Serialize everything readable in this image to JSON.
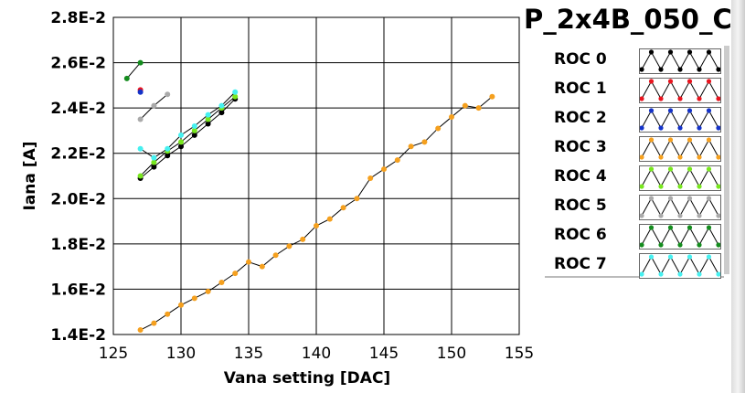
{
  "title": "P_2x4B_050_C",
  "chart_data": {
    "type": "line",
    "xlabel": "Vana setting [DAC]",
    "ylabel": "Iana [A]",
    "xlim": [
      125,
      155
    ],
    "ylim": [
      0.014,
      0.028
    ],
    "xticks": [
      125,
      130,
      135,
      140,
      145,
      150,
      155
    ],
    "xtick_labels": [
      "125",
      "130",
      "135",
      "140",
      "145",
      "150",
      "155"
    ],
    "yticks": [
      0.014,
      0.016,
      0.018,
      0.02,
      0.022,
      0.024,
      0.026,
      0.028
    ],
    "ytick_labels": [
      "1.4E-2",
      "1.6E-2",
      "1.8E-2",
      "2.0E-2",
      "2.2E-2",
      "2.4E-2",
      "2.6E-2",
      "2.8E-2"
    ],
    "grid": true,
    "legend_placement": "right",
    "series": [
      {
        "name": "ROC 0",
        "color": "#000000",
        "x": [
          127,
          128,
          129,
          130,
          131,
          132,
          133,
          134
        ],
        "y": [
          0.0209,
          0.0214,
          0.0219,
          0.0223,
          0.0228,
          0.0233,
          0.0238,
          0.0244
        ]
      },
      {
        "name": "ROC 1",
        "color": "#e8141e",
        "x": [
          127
        ],
        "y": [
          0.0248
        ]
      },
      {
        "name": "ROC 2",
        "color": "#1432c8",
        "x": [
          127
        ],
        "y": [
          0.0247
        ]
      },
      {
        "name": "ROC 3",
        "color": "#f5a01e",
        "x": [
          127,
          128,
          129,
          130,
          131,
          132,
          133,
          134,
          135,
          136,
          137,
          138,
          139,
          140,
          141,
          142,
          143,
          144,
          145,
          146,
          147,
          148,
          149,
          150,
          151,
          152,
          153
        ],
        "y": [
          0.0142,
          0.0145,
          0.0149,
          0.0153,
          0.0156,
          0.0159,
          0.0163,
          0.0167,
          0.0172,
          0.017,
          0.0175,
          0.0179,
          0.0182,
          0.0188,
          0.0191,
          0.0196,
          0.02,
          0.0209,
          0.0213,
          0.0217,
          0.0223,
          0.0225,
          0.0231,
          0.0236,
          0.0241,
          0.024,
          0.0245
        ]
      },
      {
        "name": "ROC 4",
        "color": "#78e61e",
        "x": [
          127,
          128,
          129,
          130,
          131,
          132,
          133,
          134
        ],
        "y": [
          0.021,
          0.0216,
          0.0221,
          0.0225,
          0.023,
          0.0235,
          0.024,
          0.0245
        ]
      },
      {
        "name": "ROC 5",
        "color": "#aaaaaa",
        "x": [
          127,
          128,
          129
        ],
        "y": [
          0.0235,
          0.0241,
          0.0246
        ]
      },
      {
        "name": "ROC 6",
        "color": "#148c1e",
        "x": [
          126,
          127
        ],
        "y": [
          0.0253,
          0.026
        ]
      },
      {
        "name": "ROC 7",
        "color": "#46f0f0",
        "x": [
          127,
          128,
          129,
          130,
          131,
          132,
          133,
          134
        ],
        "y": [
          0.0222,
          0.0218,
          0.0222,
          0.0228,
          0.0232,
          0.0237,
          0.0241,
          0.0247
        ]
      }
    ]
  }
}
